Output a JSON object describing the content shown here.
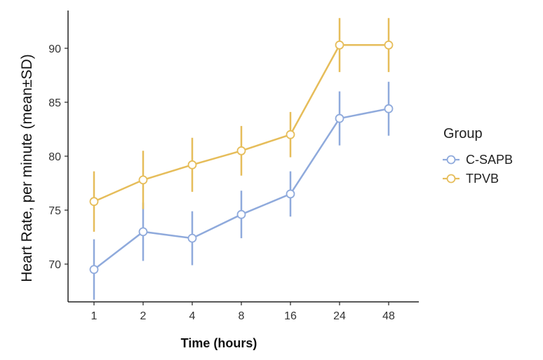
{
  "chart_data": {
    "type": "line",
    "title": "",
    "xlabel": "Time (hours)",
    "ylabel": "Heart Rate, per minute (mean±SD)",
    "categories": [
      "1",
      "2",
      "4",
      "8",
      "16",
      "24",
      "48"
    ],
    "ylim": [
      66.5,
      93.5
    ],
    "yticks": [
      70,
      75,
      80,
      85,
      90
    ],
    "grid": false,
    "legend": {
      "title": "Group",
      "placement": "right"
    },
    "series": [
      {
        "name": "C-SAPB",
        "color": "#8faadc",
        "values": [
          69.5,
          73.0,
          72.4,
          74.6,
          76.5,
          83.5,
          84.4
        ],
        "sd": [
          2.8,
          2.7,
          2.5,
          2.2,
          2.1,
          2.5,
          2.5
        ]
      },
      {
        "name": "TPVB",
        "color": "#e6bd5a",
        "values": [
          75.8,
          77.8,
          79.2,
          80.5,
          82.0,
          90.3,
          90.3
        ],
        "sd": [
          2.8,
          2.7,
          2.5,
          2.3,
          2.1,
          2.5,
          2.5
        ]
      }
    ]
  }
}
